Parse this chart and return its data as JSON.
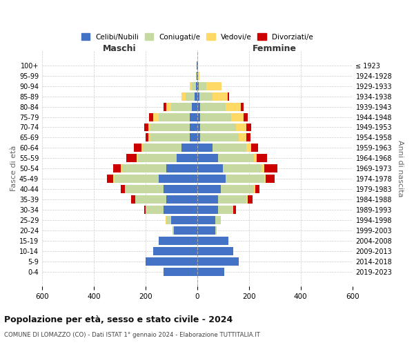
{
  "age_groups": [
    "0-4",
    "5-9",
    "10-14",
    "15-19",
    "20-24",
    "25-29",
    "30-34",
    "35-39",
    "40-44",
    "45-49",
    "50-54",
    "55-59",
    "60-64",
    "65-69",
    "70-74",
    "75-79",
    "80-84",
    "85-89",
    "90-94",
    "95-99",
    "100+"
  ],
  "birth_years": [
    "2019-2023",
    "2014-2018",
    "2009-2013",
    "2004-2008",
    "1999-2003",
    "1994-1998",
    "1989-1993",
    "1984-1988",
    "1979-1983",
    "1974-1978",
    "1969-1973",
    "1964-1968",
    "1959-1963",
    "1954-1958",
    "1949-1953",
    "1944-1948",
    "1939-1943",
    "1934-1938",
    "1929-1933",
    "1924-1928",
    "≤ 1923"
  ],
  "maschi_celibi": [
    130,
    200,
    170,
    150,
    90,
    100,
    130,
    120,
    130,
    150,
    120,
    80,
    60,
    30,
    30,
    30,
    20,
    10,
    5,
    2,
    2
  ],
  "maschi_coniugati": [
    0,
    0,
    0,
    0,
    5,
    20,
    70,
    120,
    150,
    170,
    170,
    150,
    150,
    150,
    150,
    120,
    80,
    35,
    15,
    2,
    0
  ],
  "maschi_vedovi": [
    0,
    0,
    0,
    0,
    0,
    2,
    0,
    0,
    0,
    5,
    5,
    5,
    5,
    10,
    10,
    20,
    20,
    15,
    10,
    2,
    0
  ],
  "maschi_divorziati": [
    0,
    0,
    0,
    0,
    0,
    0,
    5,
    15,
    15,
    25,
    30,
    40,
    30,
    10,
    15,
    15,
    10,
    0,
    0,
    0,
    0
  ],
  "femmine_celibi": [
    105,
    160,
    140,
    120,
    70,
    70,
    80,
    80,
    90,
    110,
    100,
    80,
    60,
    10,
    10,
    10,
    10,
    8,
    5,
    2,
    2
  ],
  "femmine_coniugati": [
    0,
    0,
    0,
    0,
    5,
    20,
    60,
    110,
    130,
    150,
    150,
    140,
    130,
    150,
    140,
    120,
    100,
    50,
    30,
    2,
    0
  ],
  "femmine_vedovi": [
    0,
    0,
    0,
    0,
    0,
    0,
    0,
    5,
    5,
    5,
    10,
    10,
    20,
    30,
    40,
    50,
    60,
    60,
    60,
    5,
    2
  ],
  "femmine_divorziati": [
    0,
    0,
    0,
    0,
    0,
    0,
    10,
    20,
    15,
    35,
    50,
    40,
    25,
    15,
    20,
    15,
    10,
    5,
    0,
    0,
    0
  ],
  "color_celibi": "#4472c4",
  "color_coniugati": "#c5d9a0",
  "color_vedovi": "#ffd966",
  "color_divorziati": "#cc0000",
  "xlim": 600,
  "title": "Popolazione per età, sesso e stato civile - 2024",
  "subtitle": "COMUNE DI LOMAZZO (CO) - Dati ISTAT 1° gennaio 2024 - Elaborazione TUTTITALIA.IT",
  "ylabel_left": "Fasce di età",
  "ylabel_right": "Anni di nascita",
  "xlabel_left": "Maschi",
  "xlabel_right": "Femmine",
  "legend_labels": [
    "Celibi/Nubili",
    "Coniugati/e",
    "Vedovi/e",
    "Divorziati/e"
  ],
  "background_color": "#ffffff",
  "bar_height": 0.8
}
